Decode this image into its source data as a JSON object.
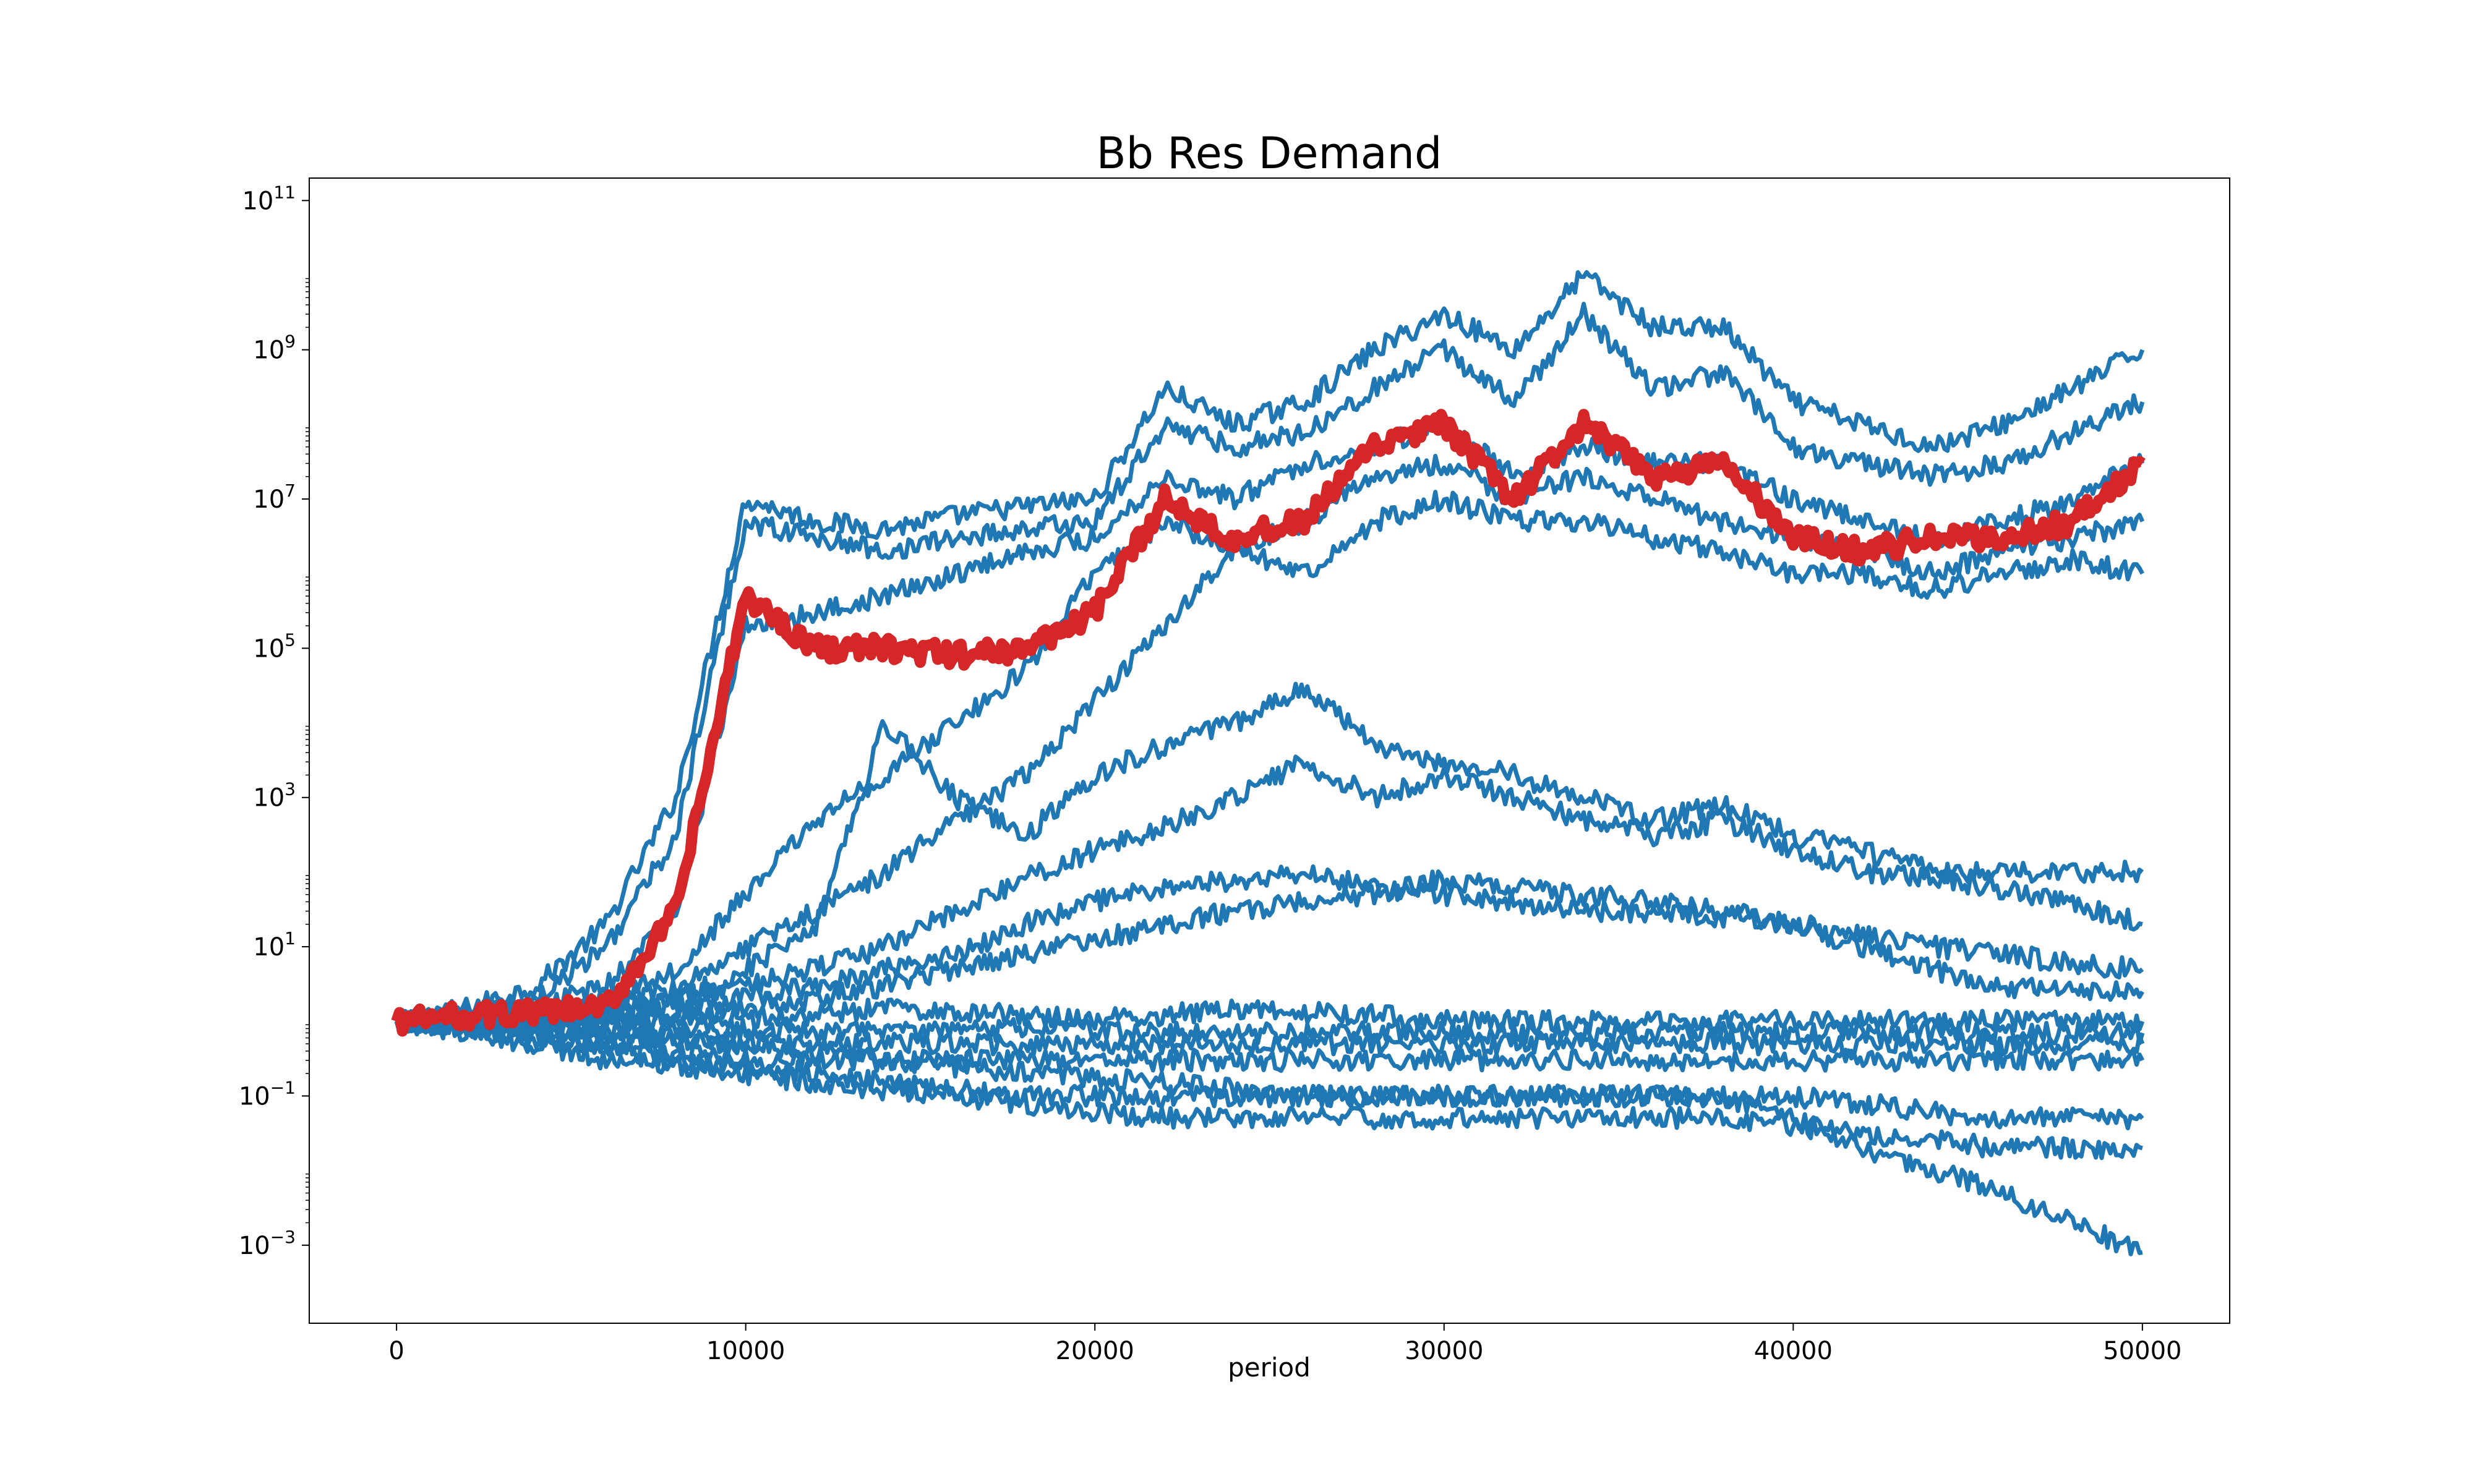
{
  "chart_data": {
    "type": "line",
    "title": "Bb Res Demand",
    "xlabel": "period",
    "ylabel": "",
    "yscale": "log",
    "xlim": [
      -2500,
      52500
    ],
    "ylim": [
      9e-05,
      200000000000
    ],
    "x_ticks": [
      0,
      10000,
      20000,
      30000,
      40000,
      50000
    ],
    "y_ticks": [
      {
        "value": 0.001,
        "base": "10",
        "exp": "−3"
      },
      {
        "value": 0.1,
        "base": "10",
        "exp": "−1"
      },
      {
        "value": 10,
        "base": "10",
        "exp": "1"
      },
      {
        "value": 1000,
        "base": "10",
        "exp": "3"
      },
      {
        "value": 100000,
        "base": "10",
        "exp": "5"
      },
      {
        "value": 10000000,
        "base": "10",
        "exp": "7"
      },
      {
        "value": 1000000000,
        "base": "10",
        "exp": "9"
      },
      {
        "value": 100000000000,
        "base": "10",
        "exp": "11"
      }
    ],
    "grid": false,
    "colors": {
      "series": "#1f77b4",
      "highlight": "#d62728"
    },
    "x": [
      0,
      2000,
      4000,
      6000,
      8000,
      10000,
      12000,
      14000,
      16000,
      18000,
      20000,
      22000,
      24000,
      26000,
      28000,
      30000,
      32000,
      34000,
      36000,
      38000,
      40000,
      42000,
      44000,
      46000,
      48000,
      50000
    ],
    "series": [
      {
        "values": [
          1,
          1.5,
          3,
          20,
          1000,
          10000000,
          5000000,
          4000000,
          6000000,
          8000000,
          10000000,
          300000000,
          100000000,
          200000000,
          1000000000,
          3000000000,
          1000000000,
          10000000000,
          2000000000,
          2000000000,
          200000000,
          100000000,
          50000000,
          100000000,
          300000000,
          1000000000
        ]
      },
      {
        "values": [
          1,
          1.2,
          2,
          10,
          300,
          5000000,
          3000000,
          2000000,
          3000000,
          4000000,
          5000000,
          100000000,
          50000000,
          80000000,
          300000000,
          1000000000,
          200000000,
          3000000000,
          300000000,
          500000000,
          50000000,
          30000000,
          20000000,
          30000000,
          80000000,
          200000000
        ]
      },
      {
        "values": [
          1,
          1.1,
          1.5,
          3,
          30,
          200000,
          300000,
          500000,
          1000000,
          2000000,
          3000000,
          20000000,
          10000000,
          30000000,
          50000000,
          100000000,
          20000000,
          50000000,
          30000000,
          30000000,
          10000000,
          5000000,
          3000000,
          5000000,
          10000000,
          30000000
        ]
      },
      {
        "values": [
          1,
          1,
          1.2,
          2,
          5,
          50,
          500,
          2000,
          10000,
          50000,
          1000000,
          5000000,
          2000000,
          5000000,
          20000000,
          30000000,
          10000000,
          20000000,
          10000000,
          5000000,
          3000000,
          2000000,
          1000000,
          2000000,
          3000000,
          5000000
        ]
      },
      {
        "values": [
          1,
          1,
          1.1,
          1.5,
          3,
          10,
          30,
          100,
          500,
          2000,
          20000,
          200000,
          2000000,
          1000000,
          5000000,
          10000000,
          5000000,
          5000000,
          3000000,
          2000000,
          1000000,
          1000000,
          600000,
          1000000,
          1500000,
          1000000
        ]
      },
      {
        "values": [
          1,
          1,
          1,
          1.2,
          2,
          5,
          20,
          10000,
          1000,
          300,
          2000,
          5000,
          10000,
          30000,
          5000,
          3000,
          2000,
          1000,
          500,
          800,
          300,
          200,
          100,
          100,
          100,
          100
        ]
      },
      {
        "values": [
          1,
          0.9,
          1,
          1.3,
          2,
          3,
          5,
          10,
          30,
          80,
          200,
          400,
          1000,
          3000,
          1000,
          2000,
          1000,
          500,
          300,
          500,
          200,
          100,
          80,
          60,
          40,
          20
        ]
      },
      {
        "values": [
          1,
          1,
          1,
          1.1,
          1.5,
          2,
          3,
          5,
          8,
          20,
          40,
          60,
          80,
          100,
          60,
          50,
          40,
          30,
          30,
          25,
          20,
          15,
          10,
          8,
          6,
          5
        ]
      },
      {
        "values": [
          1,
          1,
          0.9,
          1,
          1.2,
          1.5,
          2,
          3,
          5,
          8,
          12,
          20,
          30,
          40,
          50,
          80,
          60,
          50,
          40,
          30,
          20,
          10,
          5,
          3,
          2.5,
          2.5
        ]
      },
      {
        "values": [
          1,
          1.2,
          1.5,
          1.3,
          1.2,
          1.1,
          1.2,
          1.5,
          1.3,
          1.2,
          1.1,
          1.2,
          1.5,
          1.3,
          1.2,
          1,
          1,
          1,
          1,
          1,
          1,
          1,
          1,
          1,
          1,
          1
        ]
      },
      {
        "values": [
          1,
          1,
          0.9,
          0.8,
          0.8,
          0.8,
          0.7,
          0.7,
          0.7,
          0.8,
          0.8,
          0.7,
          0.7,
          0.7,
          0.7,
          0.7,
          0.7,
          0.7,
          0.7,
          0.7,
          0.7,
          0.7,
          0.7,
          0.7,
          0.7,
          0.7
        ]
      },
      {
        "values": [
          1,
          0.9,
          0.8,
          0.7,
          0.6,
          0.5,
          0.5,
          0.5,
          0.5,
          0.5,
          0.5,
          0.5,
          0.5,
          0.5,
          0.5,
          0.5,
          0.5,
          0.5,
          0.5,
          0.5,
          0.5,
          0.5,
          0.5,
          0.5,
          0.5,
          0.5
        ]
      },
      {
        "values": [
          1,
          0.8,
          0.6,
          0.5,
          0.4,
          0.3,
          0.3,
          0.3,
          0.3,
          0.3,
          0.3,
          0.3,
          0.3,
          0.3,
          0.3,
          0.3,
          0.3,
          0.3,
          0.3,
          0.3,
          0.3,
          0.3,
          0.3,
          0.3,
          0.3,
          0.3
        ]
      },
      {
        "values": [
          1,
          0.8,
          0.6,
          0.4,
          0.3,
          0.25,
          0.2,
          0.15,
          0.12,
          0.1,
          0.1,
          0.1,
          0.1,
          0.1,
          0.1,
          0.1,
          0.1,
          0.1,
          0.1,
          0.1,
          0.1,
          0.08,
          0.06,
          0.05,
          0.05,
          0.05
        ]
      },
      {
        "values": [
          1,
          0.7,
          0.5,
          0.3,
          0.25,
          0.2,
          0.15,
          0.12,
          0.1,
          0.08,
          0.06,
          0.05,
          0.05,
          0.05,
          0.05,
          0.05,
          0.05,
          0.05,
          0.05,
          0.05,
          0.04,
          0.03,
          0.025,
          0.02,
          0.02,
          0.02
        ]
      },
      {
        "values": [
          1,
          0.9,
          0.8,
          0.7,
          0.6,
          0.5,
          0.4,
          0.3,
          0.25,
          0.2,
          0.18,
          0.15,
          0.12,
          0.1,
          0.1,
          0.1,
          0.1,
          0.1,
          0.1,
          0.1,
          0.05,
          0.02,
          0.01,
          0.005,
          0.002,
          0.0008
        ]
      }
    ],
    "highlight_series": {
      "values": [
        1,
        1.2,
        1.3,
        1.5,
        30,
        500000,
        100000,
        100000,
        80000,
        100000,
        300000,
        10000000,
        3000000,
        5000000,
        50000000,
        100000000,
        10000000,
        100000000,
        20000000,
        30000000,
        3000000,
        2000000,
        3000000,
        3000000,
        5000000,
        30000000
      ]
    }
  }
}
